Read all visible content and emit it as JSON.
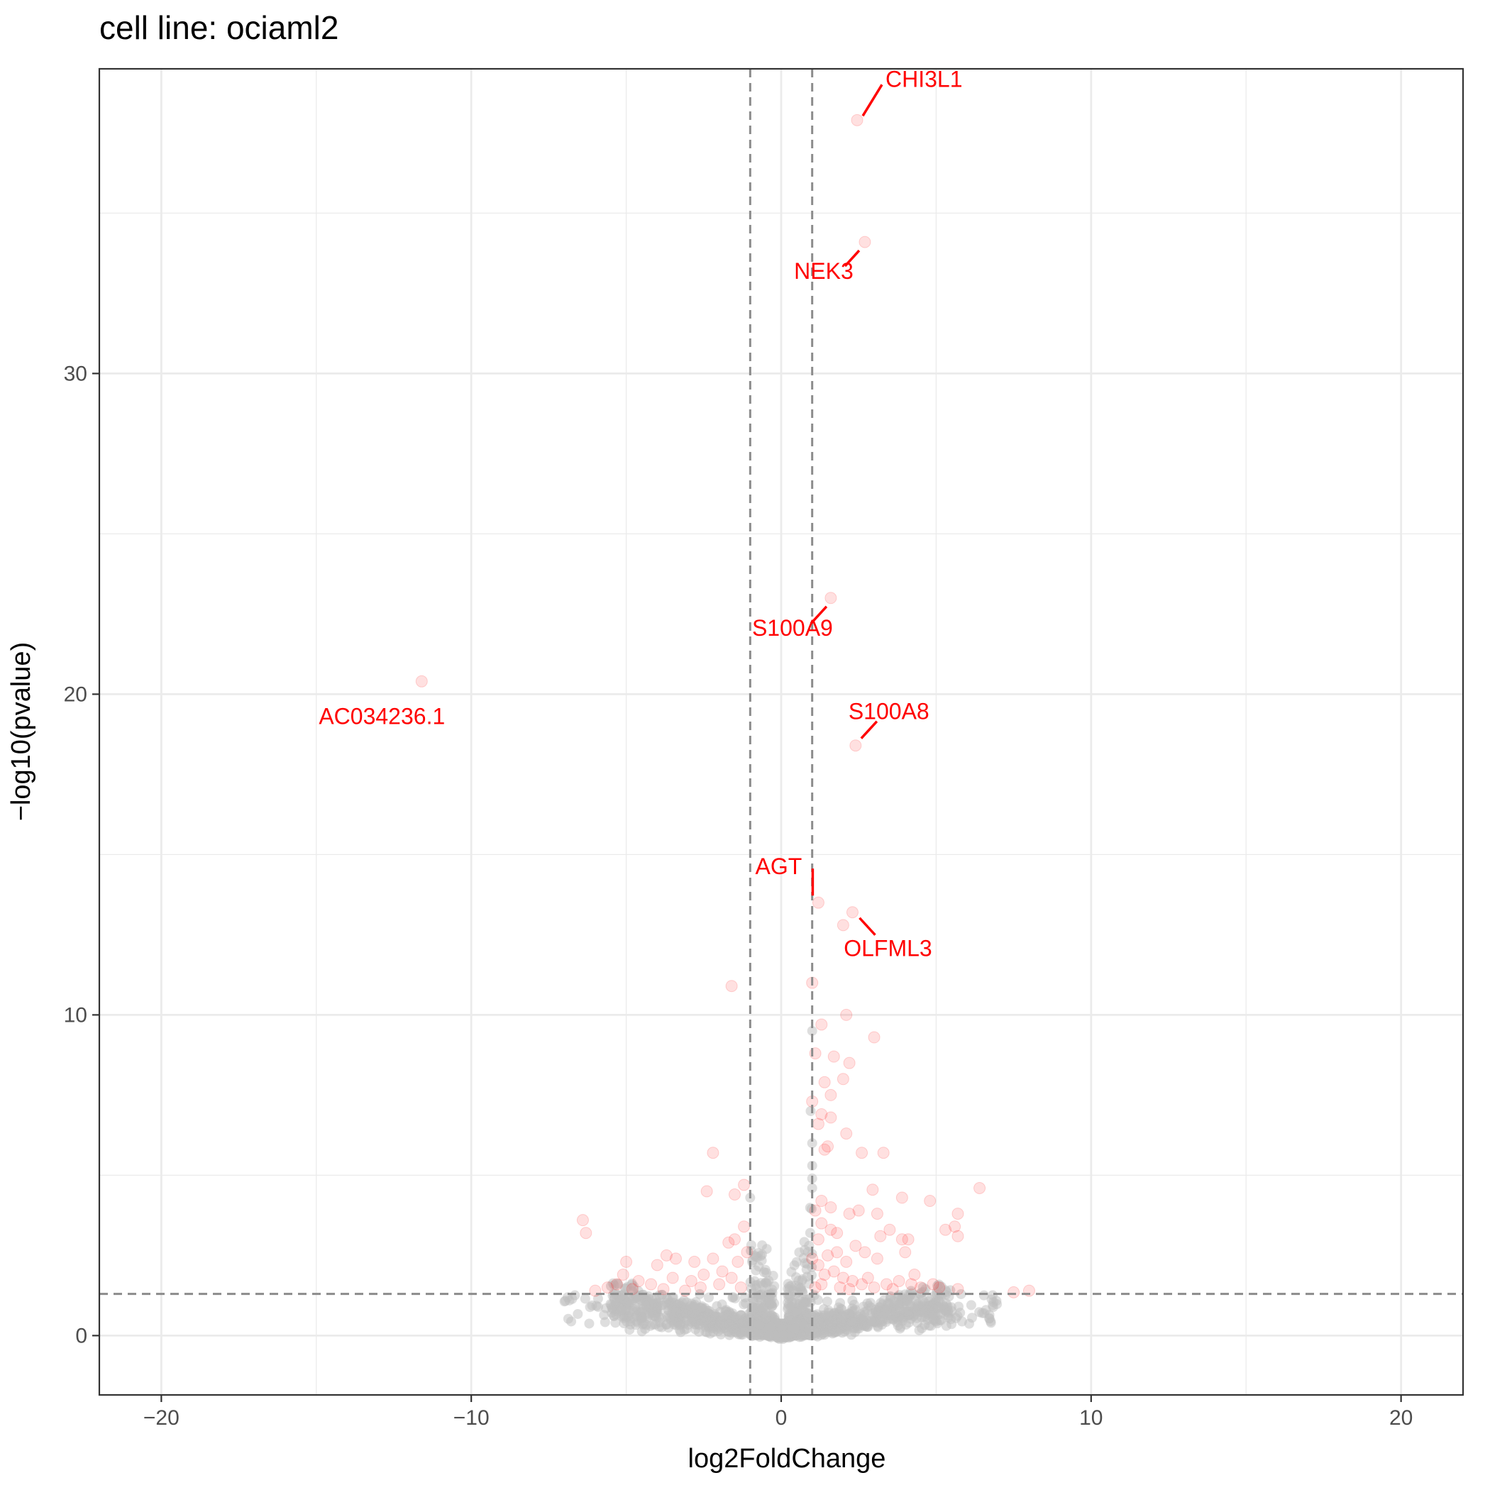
{
  "chart_data": {
    "type": "scatter",
    "title": "cell line: ociaml2",
    "xlabel": "log2FoldChange",
    "ylabel": "−log10(pvalue)",
    "xlim": [
      -22,
      22
    ],
    "ylim": [
      -1.85,
      39.5
    ],
    "x_ticks": [
      -20,
      -10,
      0,
      10,
      20
    ],
    "x_tick_labels": [
      "−20",
      "−10",
      "0",
      "10",
      "20"
    ],
    "y_ticks": [
      0,
      10,
      20,
      30
    ],
    "y_tick_labels": [
      "0",
      "10",
      "20",
      "30"
    ],
    "grid": true,
    "thresholds": {
      "log2fc": [
        -1,
        1
      ],
      "neg_log10_p": 1.3
    },
    "colors": {
      "significant": "#ff0000",
      "not_significant": "#bebebe",
      "threshold_line": "#8c8c8c"
    },
    "labeled_genes": [
      {
        "name": "CHI3L1",
        "x": 2.45,
        "y": 37.9
      },
      {
        "name": "NEK3",
        "x": 2.7,
        "y": 34.1
      },
      {
        "name": "S100A9",
        "x": 1.6,
        "y": 23.0
      },
      {
        "name": "AC034236.1",
        "x": -11.6,
        "y": 20.4
      },
      {
        "name": "S100A8",
        "x": 2.4,
        "y": 18.4
      },
      {
        "name": "AGT",
        "x": 1.2,
        "y": 13.5
      },
      {
        "name": "OLFML3",
        "x": 2.3,
        "y": 13.2
      }
    ],
    "significant_points": [
      [
        2.0,
        12.8
      ],
      [
        -1.6,
        10.9
      ],
      [
        1.0,
        11.0
      ],
      [
        2.1,
        10.0
      ],
      [
        3.0,
        9.3
      ],
      [
        1.3,
        9.7
      ],
      [
        1.1,
        8.8
      ],
      [
        1.7,
        8.7
      ],
      [
        2.2,
        8.5
      ],
      [
        1.4,
        7.9
      ],
      [
        2.0,
        8.0
      ],
      [
        1.6,
        7.5
      ],
      [
        1.0,
        7.3
      ],
      [
        1.3,
        6.9
      ],
      [
        1.6,
        6.8
      ],
      [
        1.2,
        6.6
      ],
      [
        2.1,
        6.3
      ],
      [
        1.5,
        5.9
      ],
      [
        1.4,
        5.8
      ],
      [
        2.6,
        5.7
      ],
      [
        3.3,
        5.7
      ],
      [
        -2.2,
        5.7
      ],
      [
        -2.4,
        4.5
      ],
      [
        -1.2,
        4.7
      ],
      [
        -1.5,
        4.4
      ],
      [
        2.95,
        4.55
      ],
      [
        3.9,
        4.3
      ],
      [
        4.8,
        4.2
      ],
      [
        6.4,
        4.6
      ],
      [
        1.3,
        4.2
      ],
      [
        1.6,
        4.0
      ],
      [
        2.2,
        3.8
      ],
      [
        2.5,
        3.9
      ],
      [
        3.1,
        3.8
      ],
      [
        5.7,
        3.8
      ],
      [
        5.6,
        3.4
      ],
      [
        5.3,
        3.3
      ],
      [
        5.7,
        3.1
      ],
      [
        -6.4,
        3.6
      ],
      [
        -6.3,
        3.2
      ],
      [
        3.5,
        3.3
      ],
      [
        3.9,
        3.0
      ],
      [
        4.1,
        3.0
      ],
      [
        -1.5,
        3.0
      ],
      [
        -1.7,
        2.9
      ],
      [
        -1.2,
        3.4
      ],
      [
        1.3,
        3.5
      ],
      [
        1.8,
        3.2
      ],
      [
        2.4,
        2.8
      ],
      [
        3.2,
        3.1
      ],
      [
        2.7,
        2.6
      ],
      [
        3.1,
        2.4
      ],
      [
        4.0,
        2.6
      ],
      [
        -3.7,
        2.5
      ],
      [
        -3.4,
        2.4
      ],
      [
        -2.8,
        2.3
      ],
      [
        -2.2,
        2.4
      ],
      [
        -1.9,
        2.0
      ],
      [
        -4.0,
        2.2
      ],
      [
        -5.0,
        2.3
      ],
      [
        -5.1,
        1.9
      ],
      [
        -4.6,
        1.7
      ],
      [
        -5.3,
        1.6
      ],
      [
        -5.6,
        1.5
      ],
      [
        -4.2,
        1.6
      ],
      [
        -3.5,
        1.8
      ],
      [
        -2.9,
        1.7
      ],
      [
        -2.5,
        1.9
      ],
      [
        -2.0,
        1.6
      ],
      [
        -1.6,
        1.8
      ],
      [
        -1.3,
        1.5
      ],
      [
        -3.1,
        1.4
      ],
      [
        -4.8,
        1.45
      ],
      [
        -6.0,
        1.4
      ],
      [
        1.2,
        2.2
      ],
      [
        1.4,
        1.9
      ],
      [
        1.7,
        2.0
      ],
      [
        2.0,
        1.8
      ],
      [
        2.3,
        1.7
      ],
      [
        2.6,
        1.6
      ],
      [
        3.0,
        1.5
      ],
      [
        3.4,
        1.6
      ],
      [
        3.8,
        1.7
      ],
      [
        4.2,
        1.6
      ],
      [
        4.5,
        1.5
      ],
      [
        4.9,
        1.6
      ],
      [
        5.1,
        1.5
      ],
      [
        5.7,
        1.45
      ],
      [
        7.5,
        1.35
      ],
      [
        8.0,
        1.4
      ],
      [
        1.1,
        1.5
      ],
      [
        1.3,
        1.6
      ],
      [
        1.5,
        2.5
      ],
      [
        1.8,
        2.6
      ],
      [
        2.1,
        2.3
      ],
      [
        1.2,
        3.0
      ],
      [
        1.6,
        3.3
      ],
      [
        1.9,
        1.5
      ],
      [
        3.6,
        1.45
      ],
      [
        -1.1,
        2.6
      ],
      [
        -2.6,
        1.5
      ],
      [
        -3.8,
        1.45
      ],
      [
        -1.4,
        2.3
      ],
      [
        2.2,
        1.45
      ],
      [
        2.8,
        1.8
      ],
      [
        4.3,
        1.9
      ],
      [
        1.0,
        2.4
      ],
      [
        1.1,
        3.9
      ]
    ]
  }
}
